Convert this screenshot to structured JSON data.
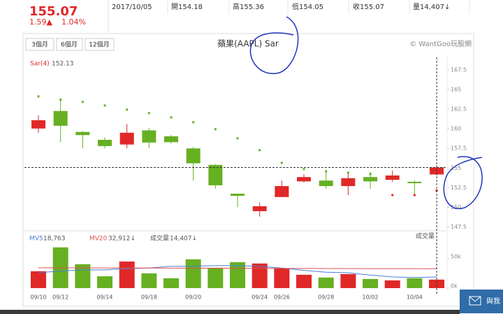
{
  "quote": {
    "price": "155.07",
    "change": "1.59▲",
    "change_pct": "1.04%",
    "date": "2017/10/05",
    "open": "開154.18",
    "high": "高155.36",
    "low": "低154.05",
    "close": "收155.07",
    "volume": "量14,407↓"
  },
  "toolbar": {
    "buttons": [
      "3個月",
      "6個月",
      "12個月"
    ],
    "copyright": "© WantGoo玩股網"
  },
  "chart_data": {
    "type": "candlestick",
    "title": "蘋果(AAPL) Sar",
    "categories": [
      "09/10",
      "09/12",
      null,
      "09/14",
      null,
      "09/18",
      null,
      "09/20",
      null,
      null,
      "09/24",
      "09/26",
      null,
      "09/28",
      null,
      "10/02",
      null,
      "10/04",
      null
    ],
    "open": [
      160.04,
      162.27,
      159.6,
      158.6,
      158.0,
      159.8,
      159.05,
      157.5,
      155.4,
      151.73,
      149.5,
      151.3,
      153.3,
      153.4,
      152.7,
      153.85,
      153.5,
      153.25,
      154.18
    ],
    "high": [
      161.73,
      163.9,
      159.7,
      158.9,
      160.6,
      160.1,
      159.2,
      157.7,
      155.5,
      151.73,
      150.6,
      153.4,
      154.2,
      154.7,
      154.3,
      154.5,
      154.7,
      153.4,
      155.36
    ],
    "low": [
      159.5,
      158.3,
      157.5,
      157.5,
      157.5,
      157.5,
      158.1,
      153.4,
      152.36,
      150.0,
      148.8,
      151.3,
      153.16,
      152.36,
      151.55,
      152.36,
      153.25,
      151.73,
      154.05
    ],
    "close": [
      161.1,
      160.39,
      159.2,
      157.8,
      159.5,
      158.25,
      158.3,
      155.6,
      152.8,
      151.46,
      150.13,
      152.7,
      153.85,
      152.7,
      153.7,
      153.3,
      154.05,
      153.07,
      155.07
    ],
    "sar": {
      "name": "Sar(4)",
      "values": [
        164.14,
        163.71,
        163.43,
        162.98,
        162.45,
        162.0,
        161.46,
        160.84,
        159.95,
        158.79,
        157.27,
        155.66,
        154.86,
        154.59,
        154.41,
        154.23,
        151.55,
        151.55,
        152.13
      ]
    },
    "colors": {
      "up": "#e02828",
      "down": "#66b022"
    },
    "ylim": [
      147,
      168.4
    ],
    "yticks": [
      147.5,
      150,
      152.5,
      155,
      157.5,
      160,
      162.5,
      165,
      167.5
    ],
    "grid": false,
    "volume": {
      "name": "成交量",
      "value_label": "14,407↓",
      "values": [
        28600,
        69000,
        40500,
        20000,
        45000,
        25000,
        16700,
        48800,
        34500,
        44000,
        41700,
        33300,
        22600,
        17900,
        23800,
        15500,
        13100,
        16700,
        14407
      ],
      "ylim": [
        0,
        90000
      ],
      "yticks": [
        {
          "value": 0,
          "label": "0k"
        },
        {
          "value": 50000,
          "label": "50k"
        }
      ],
      "ma": [
        {
          "name": "MV5",
          "color": "#4a7fd8",
          "value_label": "18,763",
          "values": [
            26000,
            29000,
            31000,
            31000,
            33000,
            34000,
            37000,
            37000,
            38000,
            38000,
            37000,
            34000,
            30000,
            27000,
            26000,
            22000,
            19000,
            18000,
            18763
          ]
        },
        {
          "name": "MV20",
          "color": "#e05050",
          "value_label": "32,912↓",
          "values": [
            34500,
            34400,
            34300,
            34200,
            34100,
            34000,
            33900,
            33800,
            33700,
            33600,
            33500,
            33400,
            33300,
            33200,
            33100,
            33050,
            33000,
            32950,
            32912
          ]
        }
      ]
    }
  },
  "contact": "與我"
}
